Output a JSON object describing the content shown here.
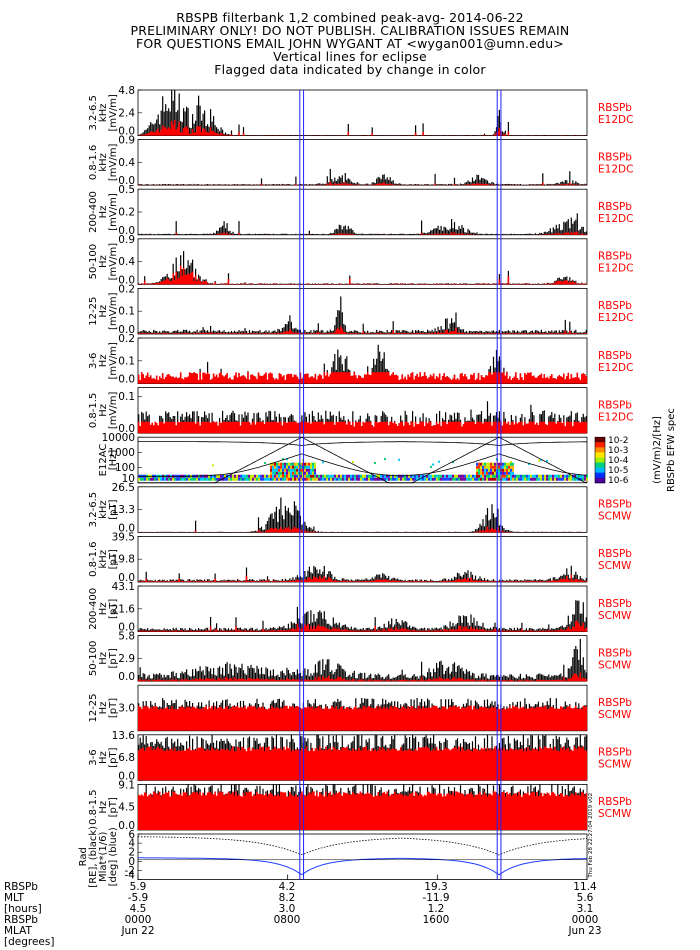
{
  "header": {
    "line1": "RBSPB filterbank 1,2 combined peak-avg- 2014-06-22",
    "line2": "PRELIMINARY ONLY! DO NOT PUBLISH. CALIBRATION ISSUES REMAIN",
    "line3": "FOR QUESTIONS EMAIL JOHN WYGANT AT <wygan001@umn.edu>",
    "line4": "Vertical lines for eclipse",
    "line5": "Flagged data indicated by change in color"
  },
  "colors": {
    "avg": "#ff0000",
    "peak": "#000000",
    "eclipse": "#2020ff",
    "right_label": "#ff0000",
    "mlat": "#1f3fff"
  },
  "chart_data": {
    "type": "line",
    "title": "RBSPB filterbank 1,2 combined peak-avg- 2014-06-22",
    "x_range_hours": [
      0,
      24
    ],
    "eclipse_hours": [
      [
        8.65,
        8.85
      ],
      [
        19.2,
        19.4
      ]
    ],
    "panels": [
      {
        "id": "e1",
        "ylabel": [
          "3.2-6.5",
          "kHz",
          "[mV/m]"
        ],
        "ticks": [
          "4.8",
          "2.4",
          "0.0"
        ],
        "ylim": [
          0,
          4.8
        ],
        "right": [
          "RBSPb",
          "E12DC"
        ],
        "dense": false,
        "peak_bumps": [
          [
            1.8,
            4.5,
            1.6
          ],
          [
            3.6,
            2.5,
            1.2
          ],
          [
            19.3,
            2.2,
            0.3
          ]
        ],
        "peak_base": 0.05,
        "avg_frac": 0.35
      },
      {
        "id": "e2",
        "ylabel": [
          "0.8-1.6",
          "kHz",
          "[mV/m]"
        ],
        "ticks": [
          "0.9",
          "0.4",
          "0.0"
        ],
        "ylim": [
          0,
          0.9
        ],
        "right": [
          "RBSPb",
          "E12DC"
        ],
        "dense": false,
        "peak_bumps": [
          [
            10.8,
            0.15,
            1.2
          ],
          [
            13.2,
            0.2,
            0.8
          ],
          [
            18.2,
            0.15,
            1.0
          ],
          [
            23.0,
            0.07,
            1.0
          ]
        ],
        "peak_base": 0.02,
        "avg_frac": 0.25
      },
      {
        "id": "e3",
        "ylabel": [
          "200-400",
          "Hz",
          "[mV/m]"
        ],
        "ticks": [
          "0.5",
          "0.2",
          "0.0"
        ],
        "ylim": [
          0,
          0.5
        ],
        "right": [
          "RBSPb",
          "E12DC"
        ],
        "dense": false,
        "peak_bumps": [
          [
            4.6,
            0.12,
            0.6
          ],
          [
            11.0,
            0.1,
            0.8
          ],
          [
            16.7,
            0.13,
            1.5
          ],
          [
            23.0,
            0.15,
            1.5
          ]
        ],
        "peak_base": 0.01,
        "avg_frac": 0.2
      },
      {
        "id": "e4",
        "ylabel": [
          "50-100",
          "Hz",
          "[mV/m]"
        ],
        "ticks": [
          "0.9",
          "0.4",
          "0.0"
        ],
        "ylim": [
          0,
          0.9
        ],
        "right": [
          "RBSPb",
          "E12DC"
        ],
        "dense": false,
        "peak_bumps": [
          [
            2.4,
            0.55,
            1.4
          ],
          [
            22.8,
            0.12,
            1.0
          ]
        ],
        "peak_base": 0.02,
        "avg_frac": 0.7
      },
      {
        "id": "e5",
        "ylabel": [
          "12-25",
          "Hz",
          "[mV/m]"
        ],
        "ticks": [
          "0.2",
          "0.1",
          "0.0"
        ],
        "ylim": [
          0,
          0.2
        ],
        "right": [
          "RBSPb",
          "E12DC"
        ],
        "dense": false,
        "peak_bumps": [
          [
            8.0,
            0.06,
            0.5
          ],
          [
            10.8,
            0.12,
            0.4
          ],
          [
            16.6,
            0.05,
            0.8
          ]
        ],
        "peak_base": 0.015,
        "avg_frac": 0.3
      },
      {
        "id": "e6",
        "ylabel": [
          "3-6",
          "Hz",
          "[mV/m]"
        ],
        "ticks": [
          "0.2",
          "0.1",
          "0.0"
        ],
        "ylim": [
          0,
          0.2
        ],
        "right": [
          "RBSPb",
          "E12DC"
        ],
        "dense": false,
        "peak_bumps": [
          [
            10.8,
            0.1,
            0.8
          ],
          [
            12.9,
            0.12,
            0.6
          ],
          [
            19.2,
            0.08,
            0.6
          ]
        ],
        "peak_base": 0.04,
        "avg_frac": 0.95
      },
      {
        "id": "e7",
        "ylabel": [
          "0.8-1.5",
          "Hz",
          "[mV/m]"
        ],
        "ticks": [
          "0.1",
          "0.0"
        ],
        "tick_fracs": [
          0.8,
          0.0
        ],
        "ylim": [
          0,
          0.125
        ],
        "right": [
          "RBSPb",
          "E12DC"
        ],
        "dense": false,
        "peak_bumps": [],
        "peak_base": 0.05,
        "avg_frac": 1.0
      },
      {
        "id": "spec",
        "ylabel": [
          "E12AC",
          "[Hz]"
        ],
        "ticks": [
          "10000",
          "1000",
          "100",
          "10"
        ],
        "log": true,
        "ylim": [
          3,
          20000
        ],
        "colorbar": {
          "ticks": [
            "10-2",
            "10-3",
            "10-4",
            "10-5",
            "10-6"
          ],
          "label": [
            "(mV/m)2/[Hz]",
            "RBSPb EFW spec"
          ]
        }
      },
      {
        "id": "b1",
        "ylabel": [
          "3.2-6.5",
          "kHz",
          "[pT]"
        ],
        "ticks": [
          "26.5",
          "13.3",
          "0.0"
        ],
        "ylim": [
          0,
          26.5
        ],
        "right": [
          "RBSPb",
          "SCMW"
        ],
        "dense": false,
        "peak_bumps": [
          [
            7.9,
            20.0,
            1.5
          ],
          [
            18.9,
            15.0,
            0.9
          ]
        ],
        "peak_base": 0.3,
        "avg_frac": 0.25
      },
      {
        "id": "b2",
        "ylabel": [
          "0.8-1.6",
          "kHz",
          "[pT]"
        ],
        "ticks": [
          "39.5",
          "19.8",
          "0.0"
        ],
        "ylim": [
          0,
          39.5
        ],
        "right": [
          "RBSPb",
          "SCMW"
        ],
        "dense": false,
        "peak_bumps": [
          [
            9.5,
            12,
            1.5
          ],
          [
            13.0,
            5,
            1.0
          ],
          [
            17.5,
            7,
            1.2
          ],
          [
            23.0,
            5,
            1.2
          ]
        ],
        "peak_base": 2.0,
        "avg_frac": 0.45
      },
      {
        "id": "b3",
        "ylabel": [
          "200-400",
          "Hz",
          "[pT]"
        ],
        "ticks": [
          "43.1",
          "21.6",
          "0.0"
        ],
        "ylim": [
          0,
          43.1
        ],
        "right": [
          "RBSPb",
          "SCMW"
        ],
        "dense": false,
        "peak_bumps": [
          [
            9.5,
            15,
            2.0
          ],
          [
            13.8,
            10,
            1.0
          ],
          [
            17.5,
            12,
            1.5
          ],
          [
            23.6,
            25,
            1.0
          ]
        ],
        "peak_base": 3.0,
        "avg_frac": 0.4
      },
      {
        "id": "b4",
        "ylabel": [
          "50-100",
          "Hz",
          "[pT]"
        ],
        "ticks": [
          "5.8",
          "2.9",
          "0.0"
        ],
        "ylim": [
          0,
          5.8
        ],
        "right": [
          "RBSPb",
          "SCMW"
        ],
        "dense": false,
        "peak_bumps": [
          [
            5.0,
            1.2,
            4.0
          ],
          [
            10.0,
            1.5,
            2.0
          ],
          [
            16.6,
            1.8,
            1.6
          ],
          [
            23.5,
            4.5,
            0.6
          ]
        ],
        "peak_base": 0.8,
        "avg_frac": 0.25
      },
      {
        "id": "b5",
        "ylabel": [
          "12-25",
          "Hz",
          "[pT]"
        ],
        "ticks": [
          "3.0"
        ],
        "tick_fracs": [
          0.5
        ],
        "ylim": [
          0,
          6.0
        ],
        "right": [
          "RBSPb",
          "SCMW"
        ],
        "dense": true,
        "dense_top": 0.6,
        "avg_frac": 0.55
      },
      {
        "id": "b6",
        "ylabel": [
          "3-6",
          "Hz",
          "[pT]"
        ],
        "ticks": [
          "13.6",
          "6.8",
          "0.0"
        ],
        "ylim": [
          0,
          13.6
        ],
        "right": [
          "RBSPb",
          "SCMW"
        ],
        "dense": true,
        "dense_top": 0.85,
        "avg_frac": 0.75
      },
      {
        "id": "b7",
        "ylabel": [
          "0.8-1.5",
          "Hz",
          "[pT]"
        ],
        "ticks": [
          "9.1",
          "4.5",
          "0.0"
        ],
        "ylim": [
          0,
          9.1
        ],
        "right": [
          "RBSPb",
          "SCMW"
        ],
        "dense": true,
        "dense_top": 0.85,
        "avg_frac": 0.85
      },
      {
        "id": "orb",
        "ylabel": [
          "Rad",
          "[RE], (black)",
          "Mlat*(1/6)",
          "[deg] (blue)"
        ],
        "ticks": [
          "6",
          "4",
          "2",
          "0",
          "-2",
          "-4"
        ],
        "ylim": [
          -5,
          6.5
        ],
        "stamp": "Thu Feb 28 22:27:04 2019 v02"
      }
    ],
    "x_ticks": [
      {
        "hour": 0,
        "rbsp": "5.9",
        "mlt": "-5.9",
        "mlat": "4.5",
        "time": "0000",
        "date": "Jun 22"
      },
      {
        "hour": 8,
        "rbsp": "4.2",
        "mlt": "8.2",
        "mlat": "3.0",
        "time": "0800",
        "date": ""
      },
      {
        "hour": 16,
        "rbsp": "19.3",
        "mlt": "-11.9",
        "mlat": "1.2",
        "time": "1600",
        "date": ""
      },
      {
        "hour": 24,
        "rbsp": "11.4",
        "mlt": "5.6",
        "mlat": "3.1",
        "time": "0000",
        "date": "Jun 23"
      }
    ]
  },
  "footer": {
    "labels": [
      "RBSPb",
      "MLT",
      "[hours]",
      "RBSPb",
      "MLAT",
      "[degrees]"
    ]
  }
}
